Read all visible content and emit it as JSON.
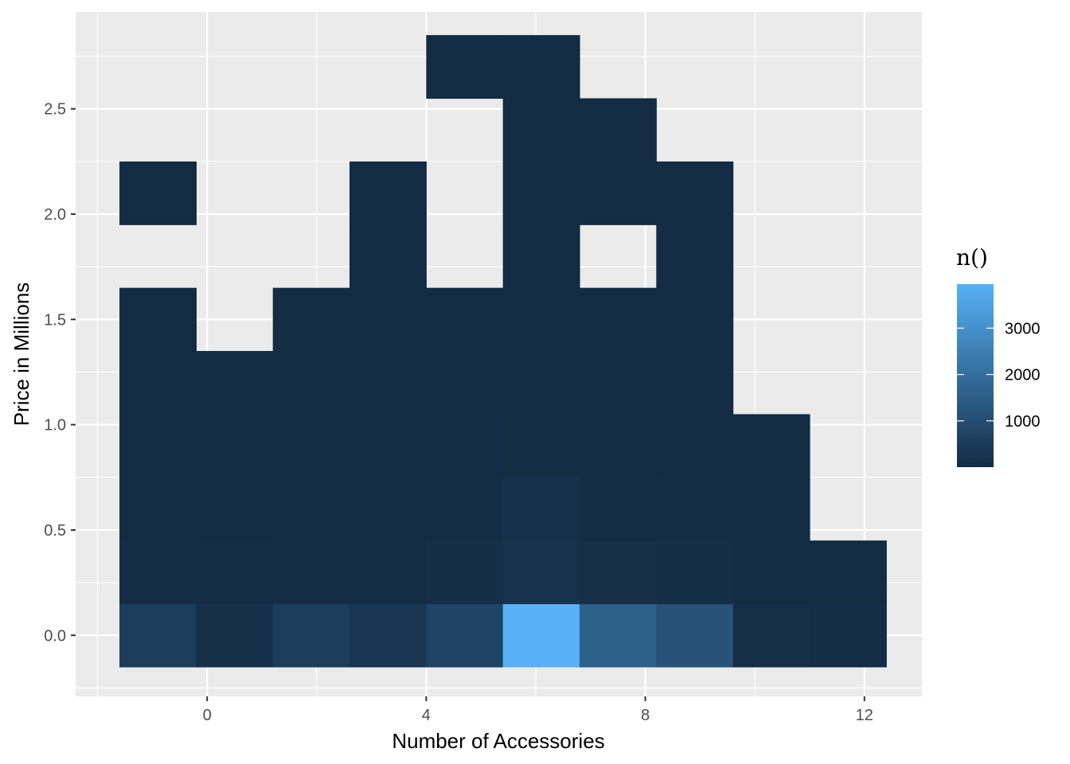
{
  "chart_data": {
    "type": "heatmap",
    "title": "",
    "xlabel": "Number of Accessories",
    "ylabel": "Price in Millions",
    "xlim": [
      -2.4,
      13.05
    ],
    "ylim": [
      -0.29,
      2.96
    ],
    "x_ticks": [
      0,
      4,
      8,
      12
    ],
    "x_tick_labels": [
      "0",
      "4",
      "8",
      "12"
    ],
    "y_ticks": [
      0.0,
      0.5,
      1.0,
      1.5,
      2.0,
      2.5
    ],
    "y_tick_labels": [
      "0.0",
      "0.5",
      "1.0",
      "1.5",
      "2.0",
      "2.5"
    ],
    "bin_width_x": 1.4,
    "bin_height_y": 0.3,
    "x_bin_centers": [
      -0.9,
      0.5,
      1.9,
      3.3,
      4.7,
      6.1,
      7.5,
      8.9,
      10.3,
      11.7
    ],
    "y_bin_centers": [
      0.0,
      0.3,
      0.6,
      0.9,
      1.2,
      1.5,
      1.8,
      2.1,
      2.4,
      2.7
    ],
    "cells": [
      {
        "x": -0.9,
        "y": 0.0,
        "n": 500
      },
      {
        "x": 0.5,
        "y": 0.0,
        "n": 150
      },
      {
        "x": 1.9,
        "y": 0.0,
        "n": 500
      },
      {
        "x": 3.3,
        "y": 0.0,
        "n": 300
      },
      {
        "x": 4.7,
        "y": 0.0,
        "n": 750
      },
      {
        "x": 6.1,
        "y": 0.0,
        "n": 3950
      },
      {
        "x": 7.5,
        "y": 0.0,
        "n": 1550
      },
      {
        "x": 8.9,
        "y": 0.0,
        "n": 1150
      },
      {
        "x": 10.3,
        "y": 0.0,
        "n": 110
      },
      {
        "x": 11.7,
        "y": 0.0,
        "n": 60
      },
      {
        "x": -0.9,
        "y": 0.3,
        "n": 40
      },
      {
        "x": 0.5,
        "y": 0.3,
        "n": 35
      },
      {
        "x": 1.9,
        "y": 0.3,
        "n": 40
      },
      {
        "x": 3.3,
        "y": 0.3,
        "n": 30
      },
      {
        "x": 4.7,
        "y": 0.3,
        "n": 90
      },
      {
        "x": 6.1,
        "y": 0.3,
        "n": 200
      },
      {
        "x": 7.5,
        "y": 0.3,
        "n": 130
      },
      {
        "x": 8.9,
        "y": 0.3,
        "n": 90
      },
      {
        "x": 10.3,
        "y": 0.3,
        "n": 25
      },
      {
        "x": 11.7,
        "y": 0.3,
        "n": 20
      },
      {
        "x": -0.9,
        "y": 0.6,
        "n": 30
      },
      {
        "x": 0.5,
        "y": 0.6,
        "n": 10
      },
      {
        "x": 1.9,
        "y": 0.6,
        "n": 20
      },
      {
        "x": 3.3,
        "y": 0.6,
        "n": 20
      },
      {
        "x": 4.7,
        "y": 0.6,
        "n": 60
      },
      {
        "x": 6.1,
        "y": 0.6,
        "n": 170
      },
      {
        "x": 7.5,
        "y": 0.6,
        "n": 40
      },
      {
        "x": 8.9,
        "y": 0.6,
        "n": 50
      },
      {
        "x": 10.3,
        "y": 0.6,
        "n": 8
      },
      {
        "x": -0.9,
        "y": 0.9,
        "n": 10
      },
      {
        "x": 0.5,
        "y": 0.9,
        "n": 5
      },
      {
        "x": 1.9,
        "y": 0.9,
        "n": 5
      },
      {
        "x": 3.3,
        "y": 0.9,
        "n": 5
      },
      {
        "x": 4.7,
        "y": 0.9,
        "n": 15
      },
      {
        "x": 6.1,
        "y": 0.9,
        "n": 50
      },
      {
        "x": 7.5,
        "y": 0.9,
        "n": 15
      },
      {
        "x": 8.9,
        "y": 0.9,
        "n": 12
      },
      {
        "x": 10.3,
        "y": 0.9,
        "n": 3
      },
      {
        "x": -0.9,
        "y": 1.2,
        "n": 3
      },
      {
        "x": 0.5,
        "y": 1.2,
        "n": 2
      },
      {
        "x": 1.9,
        "y": 1.2,
        "n": 3
      },
      {
        "x": 3.3,
        "y": 1.2,
        "n": 3
      },
      {
        "x": 4.7,
        "y": 1.2,
        "n": 8
      },
      {
        "x": 6.1,
        "y": 1.2,
        "n": 40
      },
      {
        "x": 7.5,
        "y": 1.2,
        "n": 10
      },
      {
        "x": 8.9,
        "y": 1.2,
        "n": 6
      },
      {
        "x": -0.9,
        "y": 1.5,
        "n": 1
      },
      {
        "x": 1.9,
        "y": 1.5,
        "n": 2
      },
      {
        "x": 3.3,
        "y": 1.5,
        "n": 2
      },
      {
        "x": 4.7,
        "y": 1.5,
        "n": 3
      },
      {
        "x": 6.1,
        "y": 1.5,
        "n": 10
      },
      {
        "x": 7.5,
        "y": 1.5,
        "n": 4
      },
      {
        "x": 8.9,
        "y": 1.5,
        "n": 3
      },
      {
        "x": 3.3,
        "y": 1.8,
        "n": 1
      },
      {
        "x": 6.1,
        "y": 1.8,
        "n": 4
      },
      {
        "x": 8.9,
        "y": 1.8,
        "n": 1
      },
      {
        "x": -0.9,
        "y": 2.1,
        "n": 1
      },
      {
        "x": 3.3,
        "y": 2.1,
        "n": 1
      },
      {
        "x": 6.1,
        "y": 2.1,
        "n": 2
      },
      {
        "x": 7.5,
        "y": 2.1,
        "n": 2
      },
      {
        "x": 8.9,
        "y": 2.1,
        "n": 1
      },
      {
        "x": 6.1,
        "y": 2.4,
        "n": 2
      },
      {
        "x": 7.5,
        "y": 2.4,
        "n": 1
      },
      {
        "x": 4.7,
        "y": 2.7,
        "n": 1
      },
      {
        "x": 6.1,
        "y": 2.7,
        "n": 1
      }
    ],
    "fill_scale": {
      "low_color": "#132B43",
      "high_color": "#56B1F7",
      "min": 1,
      "max": 3950
    },
    "legend": {
      "title": "n()",
      "position": "right",
      "breaks": [
        1000,
        2000,
        3000
      ],
      "labels": [
        "1000",
        "2000",
        "3000"
      ]
    },
    "grid": true,
    "panel_background": "#EBEBEB",
    "grid_color": "#FFFFFF"
  }
}
